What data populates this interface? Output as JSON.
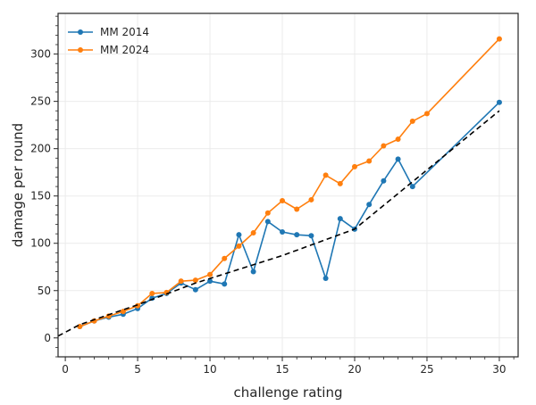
{
  "chart_data": {
    "type": "line",
    "xlabel": "challenge rating",
    "ylabel": "damage per round",
    "xlim": [
      -0.5,
      31.3
    ],
    "ylim": [
      -20,
      343
    ],
    "xticks": [
      0,
      5,
      10,
      15,
      20,
      25,
      30
    ],
    "yticks": [
      0,
      50,
      100,
      150,
      200,
      250,
      300
    ],
    "grid": true,
    "legend_position": "top-left",
    "series": [
      {
        "name": "MM 2014",
        "color": "#1f77b4",
        "marker": "circle",
        "x": [
          1,
          2,
          3,
          4,
          5,
          6,
          7,
          8,
          9,
          10,
          11,
          12,
          13,
          14,
          15,
          16,
          17,
          18,
          19,
          20,
          21,
          22,
          23,
          24,
          30
        ],
        "y": [
          12,
          18,
          22,
          25,
          31,
          42,
          47,
          58,
          51,
          60,
          57,
          109,
          70,
          123,
          112,
          109,
          108,
          63,
          126,
          115,
          141,
          166,
          189,
          160,
          249
        ]
      },
      {
        "name": "MM 2024",
        "color": "#ff7f0e",
        "marker": "circle",
        "x": [
          1,
          2,
          3,
          4,
          5,
          6,
          7,
          8,
          9,
          10,
          11,
          12,
          13,
          14,
          15,
          16,
          17,
          18,
          19,
          20,
          21,
          22,
          23,
          24,
          25,
          30
        ],
        "y": [
          12,
          18,
          23,
          28,
          34,
          47,
          48,
          60,
          61,
          67,
          84,
          97,
          111,
          132,
          145,
          136,
          146,
          172,
          163,
          181,
          187,
          203,
          210,
          229,
          237,
          316
        ]
      },
      {
        "color": "#000000",
        "style": "dashed",
        "x": [
          -0.5,
          1,
          5,
          9,
          15,
          20,
          30
        ],
        "y": [
          2,
          14,
          35,
          58,
          87,
          115,
          240
        ]
      }
    ]
  }
}
